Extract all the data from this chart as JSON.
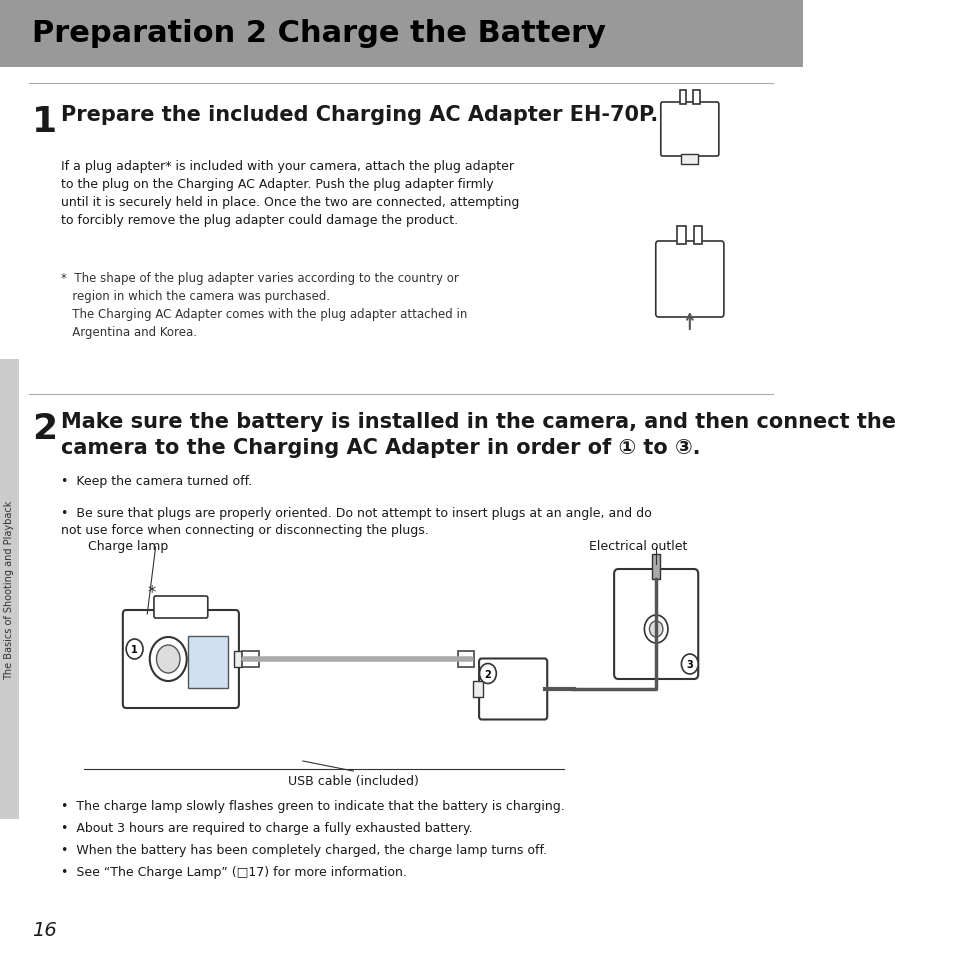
{
  "page_bg": "#ffffff",
  "header_bg": "#999999",
  "header_text": "Preparation 2 Charge the Battery",
  "header_text_color": "#000000",
  "header_fontsize": 22,
  "sidebar_bg": "#cccccc",
  "sidebar_text": "The Basics of Shooting and Playback",
  "sidebar_text_color": "#333333",
  "page_number": "16",
  "step1_number": "1",
  "step1_title": "Prepare the included Charging AC Adapter EH-70P.",
  "step1_body": "If a plug adapter* is included with your camera, attach the plug adapter\nto the plug on the Charging AC Adapter. Push the plug adapter firmly\nuntil it is securely held in place. Once the two are connected, attempting\nto forcibly remove the plug adapter could damage the product.",
  "step1_note": "*  The shape of the plug adapter varies according to the country or\n   region in which the camera was purchased.\n   The Charging AC Adapter comes with the plug adapter attached in\n   Argentina and Korea.",
  "step2_number": "2",
  "step2_title": "Make sure the battery is installed in the camera, and then connect the\ncamera to the Charging AC Adapter in order of ① to ③.",
  "step2_bullets": [
    "Keep the camera turned off.",
    "Be sure that plugs are properly oriented. Do not attempt to insert plugs at an angle, and do\nnot use force when connecting or disconnecting the plugs."
  ],
  "label_charge_lamp": "Charge lamp",
  "label_electrical_outlet": "Electrical outlet",
  "label_usb_cable": "USB cable (included)",
  "bottom_bullets": [
    "The charge lamp slowly flashes green to indicate that the battery is charging.",
    "About 3 hours are required to charge a fully exhausted battery.",
    "When the battery has been completely charged, the charge lamp turns off.",
    "See “The Charge Lamp” (□17) for more information."
  ],
  "divider_color": "#aaaaaa",
  "text_color": "#1a1a1a",
  "small_text_color": "#333333"
}
